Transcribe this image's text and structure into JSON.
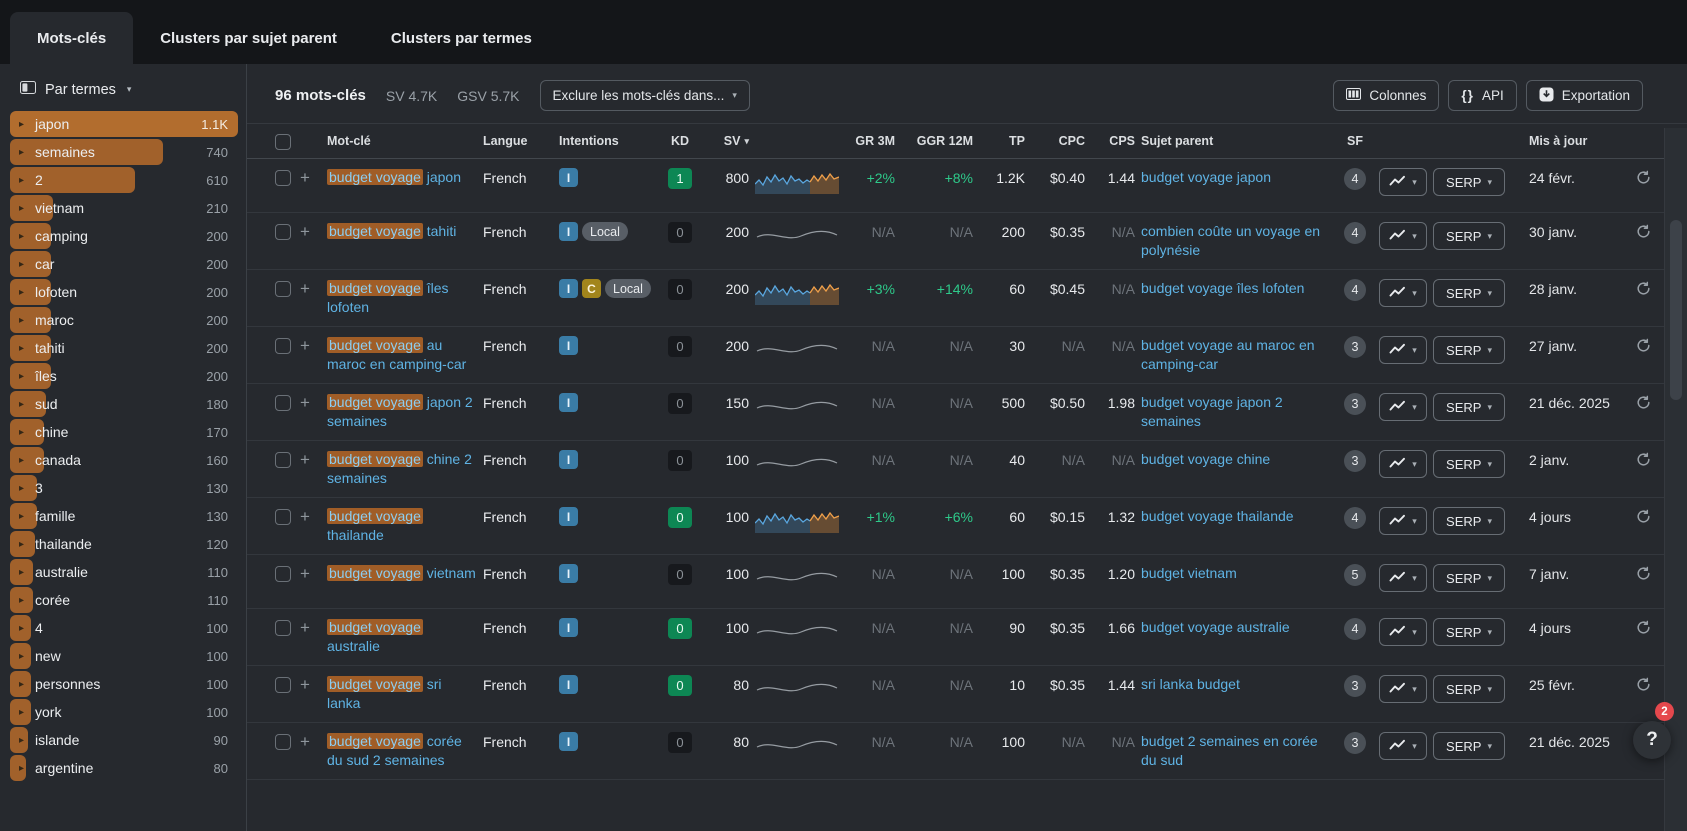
{
  "icons": {
    "expand_arrow": "▸",
    "chevron_down": "▾",
    "sort_down": "▾",
    "plus": "+",
    "api_braces": "{}",
    "help": "?"
  },
  "tabs": {
    "items": [
      {
        "label": "Mots-clés",
        "active": true
      },
      {
        "label": "Clusters par sujet parent",
        "active": false
      },
      {
        "label": "Clusters par termes",
        "active": false
      }
    ]
  },
  "sidebar": {
    "header": {
      "label": "Par termes"
    },
    "terms": [
      {
        "label": "japon",
        "count": "1.1K",
        "pct": 100,
        "selected": true
      },
      {
        "label": "semaines",
        "count": "740",
        "pct": 67,
        "selected": false
      },
      {
        "label": "2",
        "count": "610",
        "pct": 55,
        "selected": false
      },
      {
        "label": "vietnam",
        "count": "210",
        "pct": 19,
        "selected": false
      },
      {
        "label": "camping",
        "count": "200",
        "pct": 18,
        "selected": false
      },
      {
        "label": "car",
        "count": "200",
        "pct": 18,
        "selected": false
      },
      {
        "label": "lofoten",
        "count": "200",
        "pct": 18,
        "selected": false
      },
      {
        "label": "maroc",
        "count": "200",
        "pct": 18,
        "selected": false
      },
      {
        "label": "tahiti",
        "count": "200",
        "pct": 18,
        "selected": false
      },
      {
        "label": "îles",
        "count": "200",
        "pct": 18,
        "selected": false
      },
      {
        "label": "sud",
        "count": "180",
        "pct": 16,
        "selected": false
      },
      {
        "label": "chine",
        "count": "170",
        "pct": 15,
        "selected": false
      },
      {
        "label": "canada",
        "count": "160",
        "pct": 15,
        "selected": false
      },
      {
        "label": "3",
        "count": "130",
        "pct": 12,
        "selected": false
      },
      {
        "label": "famille",
        "count": "130",
        "pct": 12,
        "selected": false
      },
      {
        "label": "thailande",
        "count": "120",
        "pct": 11,
        "selected": false
      },
      {
        "label": "australie",
        "count": "110",
        "pct": 10,
        "selected": false
      },
      {
        "label": "corée",
        "count": "110",
        "pct": 10,
        "selected": false
      },
      {
        "label": "4",
        "count": "100",
        "pct": 9,
        "selected": false
      },
      {
        "label": "new",
        "count": "100",
        "pct": 9,
        "selected": false
      },
      {
        "label": "personnes",
        "count": "100",
        "pct": 9,
        "selected": false
      },
      {
        "label": "york",
        "count": "100",
        "pct": 9,
        "selected": false
      },
      {
        "label": "islande",
        "count": "90",
        "pct": 8,
        "selected": false
      },
      {
        "label": "argentine",
        "count": "80",
        "pct": 7,
        "selected": false
      }
    ]
  },
  "toolbar": {
    "count_label": "96 mots-clés",
    "sv": "SV 4.7K",
    "gsv": "GSV 5.7K",
    "exclude_button": "Exclure les mots-clés dans...",
    "columns_button": "Colonnes",
    "api_button": "API",
    "export_button": "Exportation"
  },
  "table": {
    "headers": {
      "keyword": "Mot-clé",
      "lang": "Langue",
      "intents": "Intentions",
      "kd": "KD",
      "sv": "SV",
      "gr3m": "GR 3M",
      "ggr12m": "GGR 12M",
      "tp": "TP",
      "cpc": "CPC",
      "cps": "CPS",
      "parent": "Sujet parent",
      "sf": "SF",
      "updated": "Mis à jour"
    },
    "serp_label": "SERP",
    "rows": [
      {
        "kw_hl": "budget voyage",
        "kw_rest": "japon",
        "lang": "French",
        "intents": [
          "I"
        ],
        "kd": "1",
        "kd_style": "green",
        "sv": "800",
        "trend": "multi",
        "gr3m": "+2%",
        "ggr12m": "+8%",
        "tp": "1.2K",
        "cpc": "$0.40",
        "cps": "1.44",
        "sujet": "budget voyage japon",
        "sf": "4",
        "date": "24 févr."
      },
      {
        "kw_hl": "budget voyage",
        "kw_rest": "tahiti",
        "lang": "French",
        "intents": [
          "I",
          "Local"
        ],
        "kd": "0",
        "kd_style": "dark",
        "sv": "200",
        "trend": "flat",
        "gr3m": "N/A",
        "ggr12m": "N/A",
        "tp": "200",
        "cpc": "$0.35",
        "cps": "N/A",
        "sujet": "combien coûte un voyage en polynésie",
        "sf": "4",
        "date": "30 janv."
      },
      {
        "kw_hl": "budget voyage",
        "kw_rest": "îles lofoten",
        "lang": "French",
        "intents": [
          "I",
          "C",
          "Local"
        ],
        "kd": "0",
        "kd_style": "dark",
        "sv": "200",
        "trend": "multi",
        "gr3m": "+3%",
        "ggr12m": "+14%",
        "tp": "60",
        "cpc": "$0.45",
        "cps": "N/A",
        "sujet": "budget voyage îles lofoten",
        "sf": "4",
        "date": "28 janv."
      },
      {
        "kw_hl": "budget voyage",
        "kw_rest": "au maroc en camping-car",
        "lang": "French",
        "intents": [
          "I"
        ],
        "kd": "0",
        "kd_style": "dark",
        "sv": "200",
        "trend": "flat",
        "gr3m": "N/A",
        "ggr12m": "N/A",
        "tp": "30",
        "cpc": "N/A",
        "cps": "N/A",
        "sujet": "budget voyage au maroc en camping-car",
        "sf": "3",
        "date": "27 janv."
      },
      {
        "kw_hl": "budget voyage",
        "kw_rest": "japon 2 semaines",
        "lang": "French",
        "intents": [
          "I"
        ],
        "kd": "0",
        "kd_style": "dark",
        "sv": "150",
        "trend": "flat",
        "gr3m": "N/A",
        "ggr12m": "N/A",
        "tp": "500",
        "cpc": "$0.50",
        "cps": "1.98",
        "sujet": "budget voyage japon 2 semaines",
        "sf": "3",
        "date": "21 déc. 2025"
      },
      {
        "kw_hl": "budget voyage",
        "kw_rest": "chine 2 semaines",
        "lang": "French",
        "intents": [
          "I"
        ],
        "kd": "0",
        "kd_style": "dark",
        "sv": "100",
        "trend": "flat",
        "gr3m": "N/A",
        "ggr12m": "N/A",
        "tp": "40",
        "cpc": "N/A",
        "cps": "N/A",
        "sujet": "budget voyage chine",
        "sf": "3",
        "date": "2 janv."
      },
      {
        "kw_hl": "budget voyage",
        "kw_rest": "thailande",
        "lang": "French",
        "intents": [
          "I"
        ],
        "kd": "0",
        "kd_style": "green",
        "sv": "100",
        "trend": "multi",
        "gr3m": "+1%",
        "ggr12m": "+6%",
        "tp": "60",
        "cpc": "$0.15",
        "cps": "1.32",
        "sujet": "budget voyage thailande",
        "sf": "4",
        "date": "4 jours"
      },
      {
        "kw_hl": "budget voyage",
        "kw_rest": "vietnam",
        "lang": "French",
        "intents": [
          "I"
        ],
        "kd": "0",
        "kd_style": "dark",
        "sv": "100",
        "trend": "flat",
        "gr3m": "N/A",
        "ggr12m": "N/A",
        "tp": "100",
        "cpc": "$0.35",
        "cps": "1.20",
        "sujet": "budget vietnam",
        "sf": "5",
        "date": "7 janv."
      },
      {
        "kw_hl": "budget voyage",
        "kw_rest": "australie",
        "lang": "French",
        "intents": [
          "I"
        ],
        "kd": "0",
        "kd_style": "green",
        "sv": "100",
        "trend": "flat",
        "gr3m": "N/A",
        "ggr12m": "N/A",
        "tp": "90",
        "cpc": "$0.35",
        "cps": "1.66",
        "sujet": "budget voyage australie",
        "sf": "4",
        "date": "4 jours"
      },
      {
        "kw_hl": "budget voyage",
        "kw_rest": "sri lanka",
        "lang": "French",
        "intents": [
          "I"
        ],
        "kd": "0",
        "kd_style": "green",
        "sv": "80",
        "trend": "flat",
        "gr3m": "N/A",
        "ggr12m": "N/A",
        "tp": "10",
        "cpc": "$0.35",
        "cps": "1.44",
        "sujet": "sri lanka budget",
        "sf": "3",
        "date": "25 févr."
      },
      {
        "kw_hl": "budget voyage",
        "kw_rest": "corée du sud 2 semaines",
        "lang": "French",
        "intents": [
          "I"
        ],
        "kd": "0",
        "kd_style": "dark",
        "sv": "80",
        "trend": "flat",
        "gr3m": "N/A",
        "ggr12m": "N/A",
        "tp": "100",
        "cpc": "N/A",
        "cps": "N/A",
        "sujet": "budget 2 semaines en corée du sud",
        "sf": "3",
        "date": "21 déc. 2025"
      }
    ]
  },
  "help": {
    "badge": "2"
  },
  "colors": {
    "accent_orange": "#a1612b",
    "selected_orange": "#b26d2e",
    "link_blue": "#5fb3e4",
    "positive_green": "#2ec98a",
    "kd_green": "#0d8754",
    "intent_informational": "#3a7ca6",
    "intent_commercial": "#a2851c",
    "badge_red": "#e5484d",
    "background": "#26292e",
    "topbar": "#141619"
  }
}
